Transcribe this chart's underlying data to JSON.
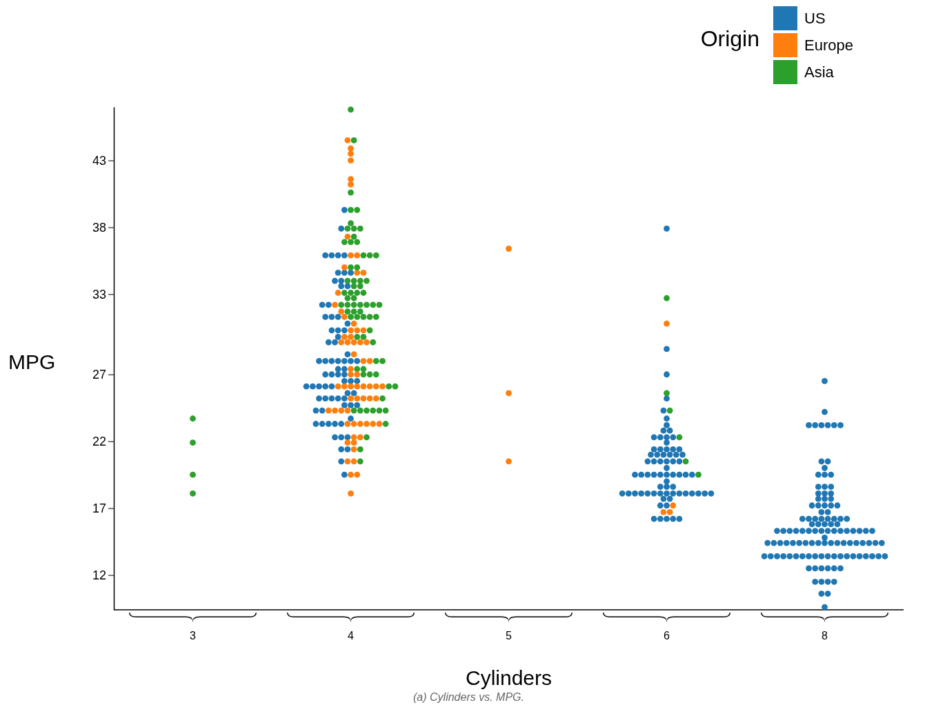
{
  "chart_data": {
    "type": "scatter",
    "xlabel": "Cylinders",
    "ylabel": "MPG",
    "legend_title": "Origin",
    "legend": "top right",
    "marker": "circle",
    "grid": false,
    "annotations": [
      "(a) Cylinders vs. MPG."
    ],
    "categories": [
      "3",
      "4",
      "5",
      "6",
      "8"
    ],
    "ylim": [
      9.4,
      47.0
    ],
    "yticks": [
      12,
      17,
      22,
      27,
      33,
      38,
      43
    ],
    "series": [
      {
        "name": "US",
        "color": "#1f77b4",
        "x": [
          "4",
          "4",
          "4",
          "4",
          "4",
          "4",
          "4",
          "4",
          "4",
          "4",
          "4",
          "4",
          "4",
          "4",
          "4",
          "4",
          "4",
          "4",
          "4",
          "4",
          "4",
          "4",
          "4",
          "4",
          "4",
          "4",
          "4",
          "4",
          "4",
          "4",
          "4",
          "4",
          "4",
          "4",
          "4",
          "4",
          "4",
          "4",
          "4",
          "4",
          "4",
          "4",
          "4",
          "4",
          "4",
          "4",
          "4",
          "4",
          "4",
          "4",
          "4",
          "4",
          "4",
          "4",
          "4",
          "4",
          "4",
          "4",
          "4",
          "4",
          "4",
          "4",
          "4",
          "4",
          "4",
          "4",
          "4",
          "4",
          "4",
          "4",
          "4",
          "4",
          "6",
          "6",
          "6",
          "6",
          "6",
          "6",
          "6",
          "6",
          "6",
          "6",
          "6",
          "6",
          "6",
          "6",
          "6",
          "6",
          "6",
          "6",
          "6",
          "6",
          "6",
          "6",
          "6",
          "6",
          "6",
          "6",
          "6",
          "6",
          "6",
          "6",
          "6",
          "6",
          "6",
          "6",
          "6",
          "6",
          "6",
          "6",
          "6",
          "6",
          "6",
          "6",
          "6",
          "6",
          "6",
          "6",
          "6",
          "6",
          "6",
          "6",
          "6",
          "6",
          "6",
          "6",
          "6",
          "6",
          "6",
          "6",
          "6",
          "6",
          "6",
          "6",
          "6",
          "6",
          "6",
          "6",
          "6",
          "6",
          "6",
          "6",
          "8",
          "8",
          "8",
          "8",
          "8",
          "8",
          "8",
          "8",
          "8",
          "8",
          "8",
          "8",
          "8",
          "8",
          "8",
          "8",
          "8",
          "8",
          "8",
          "8",
          "8",
          "8",
          "8",
          "8",
          "8",
          "8",
          "8",
          "8",
          "8",
          "8",
          "8",
          "8",
          "8",
          "8",
          "8",
          "8",
          "8",
          "8",
          "8",
          "8",
          "8",
          "8",
          "8",
          "8",
          "8",
          "8",
          "8",
          "8",
          "8",
          "8",
          "8",
          "8",
          "8",
          "8",
          "8",
          "8",
          "8",
          "8",
          "8",
          "8",
          "8",
          "8",
          "8",
          "8",
          "8",
          "8",
          "8",
          "8",
          "8",
          "8",
          "8",
          "8",
          "8",
          "8",
          "8",
          "8",
          "8",
          "8",
          "8",
          "8",
          "8",
          "8",
          "8",
          "8",
          "8",
          "8",
          "8",
          "8",
          "8",
          "8",
          "8",
          "8",
          "8",
          "8",
          "8",
          "8",
          "8",
          "8",
          "8",
          "8",
          "8",
          "8",
          "8",
          "8",
          "8",
          "8",
          "8",
          "8",
          "8",
          "8",
          "8",
          "8"
        ],
        "values": [
          39.3,
          37.9,
          35.9,
          35.9,
          35.9,
          35.9,
          34.6,
          34.6,
          34.6,
          34.0,
          34.0,
          33.6,
          33.6,
          32.2,
          32.2,
          31.3,
          31.3,
          31.3,
          30.8,
          30.3,
          30.3,
          30.3,
          29.8,
          29.4,
          29.4,
          28.5,
          28.0,
          28.0,
          28.0,
          28.0,
          28.0,
          28.0,
          28.0,
          27.4,
          27.4,
          27.0,
          27.0,
          27.0,
          27.0,
          26.5,
          26.5,
          26.5,
          26.1,
          26.1,
          26.1,
          26.1,
          26.1,
          25.6,
          25.6,
          25.2,
          25.2,
          25.2,
          25.2,
          25.2,
          24.7,
          24.7,
          24.7,
          24.3,
          24.3,
          23.7,
          23.3,
          23.3,
          23.3,
          23.3,
          23.3,
          22.3,
          22.3,
          22.3,
          21.4,
          21.4,
          20.5,
          19.5,
          37.9,
          28.9,
          27.0,
          25.2,
          24.3,
          23.7,
          23.2,
          22.8,
          22.8,
          22.3,
          22.3,
          22.3,
          22.3,
          21.9,
          21.4,
          21.4,
          21.4,
          21.4,
          21.4,
          21.0,
          21.0,
          21.0,
          21.0,
          21.0,
          21.0,
          20.5,
          20.5,
          20.5,
          20.5,
          20.5,
          20.5,
          20.0,
          19.5,
          19.5,
          19.5,
          19.5,
          19.5,
          19.5,
          19.5,
          19.5,
          19.5,
          19.5,
          19.0,
          18.6,
          18.6,
          18.6,
          18.1,
          18.1,
          18.1,
          18.1,
          18.1,
          18.1,
          18.1,
          18.1,
          18.1,
          18.1,
          18.1,
          18.1,
          18.1,
          18.1,
          18.1,
          17.7,
          17.7,
          17.2,
          17.2,
          16.2,
          16.2,
          16.2,
          16.2,
          16.2,
          15.3,
          15.3,
          15.3,
          15.3,
          26.5,
          24.2,
          23.2,
          23.2,
          23.2,
          23.2,
          23.2,
          23.2,
          20.5,
          20.5,
          20.0,
          19.5,
          19.5,
          19.5,
          18.6,
          18.6,
          18.6,
          18.1,
          18.1,
          18.1,
          17.7,
          17.7,
          17.7,
          17.2,
          17.2,
          17.2,
          17.2,
          17.2,
          16.7,
          16.7,
          16.2,
          16.2,
          16.2,
          16.2,
          16.2,
          16.2,
          16.2,
          16.2,
          15.8,
          15.8,
          15.8,
          15.8,
          15.8,
          15.3,
          15.3,
          15.3,
          15.3,
          15.3,
          15.3,
          15.3,
          15.3,
          15.3,
          15.3,
          15.3,
          15.3,
          14.8,
          14.4,
          14.4,
          14.4,
          14.4,
          14.4,
          14.4,
          14.4,
          14.4,
          14.4,
          14.4,
          14.4,
          14.4,
          14.4,
          14.4,
          14.4,
          14.4,
          14.4,
          14.4,
          14.4,
          13.4,
          13.4,
          13.4,
          13.4,
          13.4,
          13.4,
          13.4,
          13.4,
          13.4,
          13.4,
          13.4,
          13.4,
          13.4,
          13.4,
          13.4,
          13.4,
          13.4,
          13.4,
          13.4,
          13.4,
          12.5,
          12.5,
          12.5,
          12.5,
          12.5,
          12.5,
          11.5,
          11.5,
          11.5,
          11.5,
          10.6,
          10.6,
          9.6
        ]
      },
      {
        "name": "Europe",
        "color": "#ff7f0e",
        "x": [
          "4",
          "4",
          "4",
          "4",
          "4",
          "4",
          "4",
          "4",
          "4",
          "4",
          "4",
          "4",
          "4",
          "4",
          "4",
          "4",
          "4",
          "4",
          "4",
          "4",
          "4",
          "4",
          "4",
          "4",
          "4",
          "4",
          "4",
          "4",
          "4",
          "4",
          "4",
          "4",
          "4",
          "4",
          "4",
          "4",
          "4",
          "4",
          "4",
          "4",
          "4",
          "4",
          "4",
          "4",
          "4",
          "4",
          "4",
          "4",
          "4",
          "4",
          "4",
          "4",
          "4",
          "4",
          "4",
          "4",
          "4",
          "4",
          "4",
          "4",
          "4",
          "4",
          "4",
          "4",
          "4",
          "4",
          "5",
          "5",
          "5",
          "6",
          "6",
          "6",
          "6"
        ],
        "values": [
          44.5,
          43.9,
          43.5,
          43.0,
          41.6,
          41.2,
          37.3,
          35.9,
          35.9,
          35.0,
          34.6,
          34.6,
          33.1,
          32.2,
          31.7,
          31.3,
          30.8,
          30.3,
          30.3,
          30.3,
          29.8,
          29.8,
          29.4,
          29.4,
          29.4,
          29.4,
          29.4,
          28.5,
          28.0,
          28.0,
          27.4,
          27.0,
          27.0,
          26.1,
          26.1,
          26.1,
          26.1,
          26.1,
          26.1,
          26.1,
          26.1,
          25.2,
          25.2,
          25.2,
          25.2,
          25.2,
          24.3,
          24.3,
          24.3,
          24.3,
          23.3,
          23.3,
          23.3,
          23.3,
          23.3,
          23.3,
          22.3,
          22.3,
          21.9,
          21.9,
          21.4,
          20.5,
          20.5,
          19.5,
          19.5,
          18.1,
          36.4,
          25.6,
          20.5,
          30.8,
          17.2,
          16.7,
          16.7
        ]
      },
      {
        "name": "Asia",
        "color": "#2ca02c",
        "x": [
          "3",
          "3",
          "3",
          "3",
          "4",
          "4",
          "4",
          "4",
          "4",
          "4",
          "4",
          "4",
          "4",
          "4",
          "4",
          "4",
          "4",
          "4",
          "4",
          "4",
          "4",
          "4",
          "4",
          "4",
          "4",
          "4",
          "4",
          "4",
          "4",
          "4",
          "4",
          "4",
          "4",
          "4",
          "4",
          "4",
          "4",
          "4",
          "4",
          "4",
          "4",
          "4",
          "4",
          "4",
          "4",
          "4",
          "4",
          "4",
          "4",
          "4",
          "4",
          "4",
          "4",
          "4",
          "4",
          "4",
          "4",
          "4",
          "4",
          "4",
          "4",
          "4",
          "4",
          "4",
          "4",
          "4",
          "4",
          "4",
          "4",
          "4",
          "4",
          "4",
          "4",
          "6",
          "6",
          "6",
          "6",
          "6",
          "6"
        ],
        "values": [
          23.7,
          21.9,
          19.5,
          18.1,
          46.8,
          44.5,
          40.6,
          39.3,
          39.3,
          38.3,
          37.9,
          37.9,
          37.9,
          37.3,
          36.9,
          36.9,
          36.9,
          35.9,
          35.9,
          35.9,
          35.0,
          35.0,
          34.0,
          34.0,
          34.0,
          34.0,
          33.6,
          33.6,
          33.1,
          33.1,
          33.1,
          33.1,
          32.7,
          32.7,
          32.2,
          32.2,
          32.2,
          32.2,
          32.2,
          32.2,
          32.2,
          31.7,
          31.7,
          31.7,
          31.3,
          31.3,
          31.3,
          31.3,
          31.3,
          30.3,
          29.8,
          29.8,
          29.4,
          28.0,
          28.0,
          27.4,
          27.4,
          27.0,
          27.0,
          27.0,
          26.1,
          26.1,
          25.2,
          24.3,
          24.3,
          24.3,
          24.3,
          24.3,
          24.3,
          23.3,
          22.3,
          21.4,
          20.5,
          32.7,
          25.6,
          24.3,
          22.3,
          20.5,
          19.5
        ]
      }
    ]
  }
}
